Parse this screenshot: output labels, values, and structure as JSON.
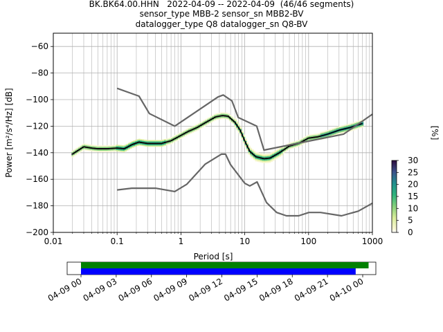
{
  "header": {
    "line1": "BK.BK64.00.HHN   2022-04-09 -- 2022-04-09  (46/46 segments)",
    "line2": "sensor_type MBB-2 sensor_sn MBB2-BV",
    "line3": "datalogger_type Q8 datalogger_sn Q8-BV"
  },
  "chart_data": [
    {
      "type": "heatmap",
      "title": "",
      "xlabel": "Period [s]",
      "ylabel": "Power [m²/s⁴/Hz] [dB]",
      "xscale": "log",
      "xlim": [
        0.01,
        1000
      ],
      "ylim": [
        -200,
        -50
      ],
      "grid": true,
      "x_ticks": [
        "0.01",
        "0.1",
        "1",
        "10",
        "100",
        "1000"
      ],
      "y_ticks": [
        "-200",
        "-180",
        "-160",
        "-140",
        "-120",
        "-100",
        "-80",
        "-60"
      ],
      "colorbar": {
        "label": "[%]",
        "ticks": [
          "0",
          "5",
          "10",
          "15",
          "20",
          "25",
          "30"
        ],
        "range": [
          0,
          30
        ]
      },
      "series": [
        {
          "name": "",
          "role": "median",
          "color": "#000000",
          "points": [
            [
              0.02,
              -141
            ],
            [
              0.025,
              -138
            ],
            [
              0.03,
              -135.5
            ],
            [
              0.04,
              -136.5
            ],
            [
              0.05,
              -137
            ],
            [
              0.07,
              -137
            ],
            [
              0.1,
              -136.5
            ],
            [
              0.13,
              -137
            ],
            [
              0.17,
              -134
            ],
            [
              0.22,
              -132
            ],
            [
              0.3,
              -133
            ],
            [
              0.4,
              -133
            ],
            [
              0.5,
              -133
            ],
            [
              0.7,
              -131
            ],
            [
              1,
              -127
            ],
            [
              1.3,
              -124
            ],
            [
              1.8,
              -121
            ],
            [
              2.5,
              -117
            ],
            [
              3.5,
              -113
            ],
            [
              4.5,
              -112
            ],
            [
              5.5,
              -112.5
            ],
            [
              7,
              -117
            ],
            [
              8.5,
              -123
            ],
            [
              10,
              -131
            ],
            [
              12,
              -139
            ],
            [
              15,
              -143
            ],
            [
              20,
              -144.5
            ],
            [
              25,
              -144
            ],
            [
              35,
              -140
            ],
            [
              50,
              -135
            ],
            [
              70,
              -133
            ],
            [
              100,
              -129
            ],
            [
              140,
              -128
            ],
            [
              200,
              -126
            ],
            [
              300,
              -123
            ],
            [
              450,
              -121
            ],
            [
              600,
              -119
            ],
            [
              700,
              -118
            ]
          ]
        },
        {
          "name": "",
          "role": "high noise model",
          "color": "#666666",
          "points": [
            [
              0.1,
              -91.5
            ],
            [
              0.22,
              -97.4
            ],
            [
              0.32,
              -110.5
            ],
            [
              0.8,
              -120
            ],
            [
              3.8,
              -98
            ],
            [
              4.6,
              -96.5
            ],
            [
              6.3,
              -101
            ],
            [
              7.9,
              -113.5
            ],
            [
              15.4,
              -120
            ],
            [
              20,
              -138
            ],
            [
              354.8,
              -126
            ],
            [
              1000,
              -111
            ]
          ]
        },
        {
          "name": "",
          "role": "low noise model",
          "color": "#666666",
          "points": [
            [
              0.1,
              -168
            ],
            [
              0.17,
              -166.7
            ],
            [
              0.4,
              -166.7
            ],
            [
              0.8,
              -169.2
            ],
            [
              1.24,
              -163.7
            ],
            [
              2.4,
              -148.6
            ],
            [
              4.3,
              -141.1
            ],
            [
              5,
              -141.1
            ],
            [
              6,
              -149
            ],
            [
              10,
              -163
            ],
            [
              12,
              -165
            ],
            [
              15.6,
              -162
            ],
            [
              21.9,
              -177.5
            ],
            [
              31.6,
              -185
            ],
            [
              45,
              -187.5
            ],
            [
              70,
              -187.5
            ],
            [
              101,
              -185
            ],
            [
              154,
              -185
            ],
            [
              328,
              -187.5
            ],
            [
              600,
              -184
            ],
            [
              1000,
              -178
            ]
          ]
        }
      ]
    },
    {
      "type": "timeline",
      "x_ticks": [
        "04-09 00",
        "04-09 03",
        "04-09 06",
        "04-09 09",
        "04-09 12",
        "04-09 15",
        "04-09 18",
        "04-09 21",
        "04-10 00"
      ],
      "bars": [
        {
          "color": "#008000",
          "start_hour": 0,
          "end_hour": 24.5
        },
        {
          "color": "#0000ff",
          "start_hour": 0,
          "end_hour": 23.4
        }
      ]
    }
  ]
}
